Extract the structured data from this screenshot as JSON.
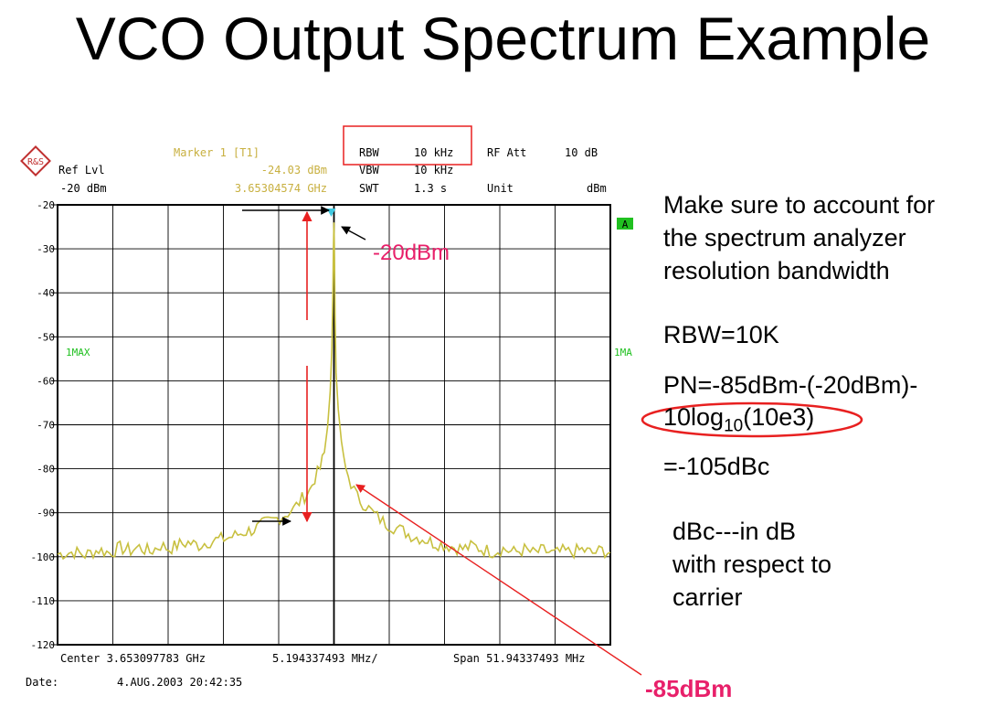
{
  "slide": {
    "title": "VCO Output Spectrum Example",
    "note_lines": [
      "Make sure to account for",
      "the spectrum analyzer",
      "resolution bandwidth"
    ],
    "rbw_eq": "RBW=10K",
    "pn_line1": "PN=-85dBm-(-20dBm)-",
    "pn_line2_a": "10log",
    "pn_line2_sub": "10",
    "pn_line2_b": "(10e3)",
    "result": "=-105dBc",
    "dbc_lines": [
      "dBc---in dB",
      "with respect to",
      "carrier"
    ],
    "callout_top": "-20dBm",
    "callout_bottom": "-85dBm"
  },
  "analyzer": {
    "ref_lvl_label": "Ref Lvl",
    "ref_lvl_value": "-20 dBm",
    "marker_label": "Marker 1 [T1]",
    "marker_level": "-24.03 dBm",
    "marker_freq": "3.65304574 GHz",
    "rbw_label": "RBW",
    "rbw_value": "10 kHz",
    "vbw_label": "VBW",
    "vbw_value": "10 kHz",
    "swt_label": "SWT",
    "swt_value": "1.3 s",
    "rfatt_label": "RF Att",
    "rfatt_value": "10 dB",
    "unit_label": "Unit",
    "unit_value": "dBm",
    "a_badge": "A",
    "trace_left": "1MAX",
    "trace_right": "1MA",
    "center_text": "Center 3.653097783 GHz",
    "div_text": "5.194337493 MHz/",
    "span_text": "Span 51.94337493 MHz",
    "date_label": "Date:",
    "date_value": "4.AUG.2003  20:42:35",
    "logo_letters": "R&S"
  },
  "colors": {
    "trace": "#c8c040",
    "marker": "#40c8e0",
    "annotation_red": "#e82020",
    "callout_pink": "#e8206a",
    "header_yellow": "#c8b040",
    "green": "#20c020"
  },
  "chart_data": {
    "type": "line",
    "ylim": [
      -120,
      -20
    ],
    "xlim": [
      -25.971687465,
      25.971687465
    ],
    "yticks": [
      -20,
      -30,
      -40,
      -50,
      -60,
      -70,
      -80,
      -90,
      -100,
      -110,
      -120
    ],
    "ytick_labels": [
      "-20",
      "-30",
      "-40",
      "-50",
      "-60",
      "-70",
      "-80",
      "-90",
      "-100",
      "-110",
      "-120"
    ],
    "grid": true,
    "x_divisions": 10,
    "series": [
      {
        "x": [
          -25.97,
          -24.4,
          -23.4,
          -22.1,
          -21.1,
          -20.1,
          -19.1,
          -18.3,
          -17.3,
          -16.3,
          -15.5,
          -14.5,
          -13.7,
          -12.7,
          -11.9,
          -11.1,
          -10.1,
          -9.3,
          -8.5,
          -7.5,
          -6.5,
          -5.6,
          -4.6,
          -3.8,
          -3.0,
          -2.3,
          -1.8,
          -1.3,
          -0.9,
          -0.6,
          -0.35,
          -0.2,
          -0.1,
          -0.05,
          0.0,
          0.05,
          0.1,
          0.2,
          0.4,
          0.7,
          1.1,
          1.6,
          2.2,
          3.0,
          3.8,
          4.6,
          5.6,
          6.5,
          7.5,
          8.3,
          9.3,
          10.3,
          11.3,
          12.1,
          13.1,
          14.1,
          14.9,
          15.9,
          16.9,
          17.9,
          18.7,
          19.7,
          20.7,
          21.5,
          22.3,
          23.3,
          24.3,
          25.2,
          25.97
        ],
        "y": [
          -99.4,
          -98.9,
          -99.6,
          -98.4,
          -99.1,
          -98.0,
          -98.6,
          -97.8,
          -98.9,
          -97.4,
          -98.2,
          -97.2,
          -96.8,
          -97.4,
          -96.6,
          -96.2,
          -95.8,
          -95.2,
          -94.4,
          -93.8,
          -92.4,
          -91.6,
          -90.4,
          -89.2,
          -86.8,
          -85.0,
          -82.1,
          -79.9,
          -76.3,
          -70.5,
          -62.4,
          -52.7,
          -40.0,
          -30.0,
          -24.0,
          -32.0,
          -45.0,
          -58.2,
          -66.5,
          -73.8,
          -80.0,
          -83.3,
          -86.5,
          -88.4,
          -90.4,
          -92.0,
          -93.2,
          -94.2,
          -95.4,
          -95.8,
          -96.8,
          -97.2,
          -97.8,
          -98.2,
          -97.6,
          -98.4,
          -98.8,
          -98.2,
          -99.0,
          -98.4,
          -99.2,
          -98.6,
          -99.4,
          -98.8,
          -99.0,
          -98.4,
          -99.2,
          -98.6,
          -99.0
        ]
      }
    ]
  }
}
